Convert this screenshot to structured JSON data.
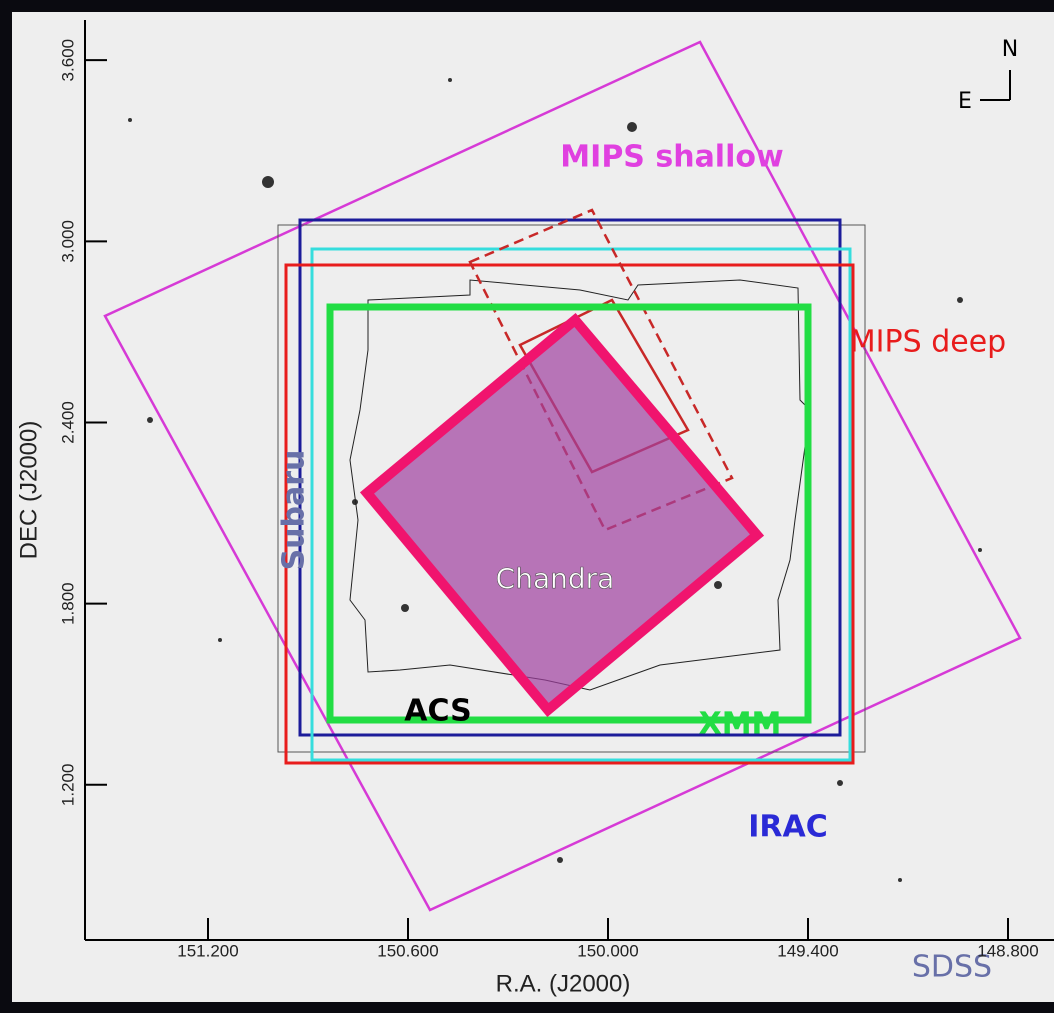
{
  "chart_data": {
    "type": "footprint-map",
    "xlabel": "R.A. (J2000)",
    "ylabel": "DEC (J2000)",
    "xlim": [
      151.569,
      148.662
    ],
    "ylim": [
      0.686,
      3.733
    ],
    "xticks": [
      {
        "value": 151.2,
        "label": "151.200"
      },
      {
        "value": 150.6,
        "label": "150.600"
      },
      {
        "value": 150.0,
        "label": "150.000"
      },
      {
        "value": 149.4,
        "label": "149.400"
      },
      {
        "value": 148.8,
        "label": "148.800"
      }
    ],
    "yticks": [
      {
        "value": 3.6,
        "label": "3.600"
      },
      {
        "value": 3.0,
        "label": "3.000"
      },
      {
        "value": 2.4,
        "label": "2.400"
      },
      {
        "value": 1.8,
        "label": "1.800"
      },
      {
        "value": 1.2,
        "label": "1.200"
      }
    ],
    "surveys": {
      "mips_shallow": "MIPS shallow",
      "mips_deep": "MIPS deep",
      "subaru": "Subaru",
      "acs": "ACS",
      "xmm": "XMM",
      "irac": "IRAC",
      "chandra": "Chandra",
      "sdss": "SDSS"
    },
    "compass": {
      "north": "N",
      "east": "E"
    }
  }
}
